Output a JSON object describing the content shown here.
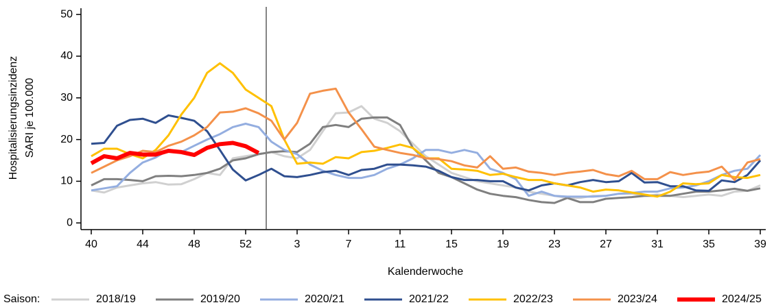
{
  "chart_data": {
    "type": "line",
    "ylabel": [
      "Hospitalisierungsinzidenz",
      "SARI je 100.000"
    ],
    "xlabel": "Kalenderwoche",
    "legend_title": "Saison:",
    "categories": [
      "40",
      null,
      null,
      null,
      "44",
      null,
      null,
      null,
      "48",
      null,
      null,
      null,
      "52",
      null,
      null,
      null,
      "3",
      null,
      null,
      null,
      "7",
      null,
      null,
      null,
      "11",
      null,
      null,
      null,
      "15",
      null,
      null,
      null,
      "19",
      null,
      null,
      null,
      "23",
      null,
      null,
      null,
      "27",
      null,
      null,
      null,
      "31",
      null,
      null,
      null,
      "35",
      null,
      null,
      null,
      "39"
    ],
    "ylim": [
      -1.6,
      51.5
    ],
    "yticks": [
      0,
      10,
      20,
      30,
      40,
      50
    ],
    "grid": false,
    "series": [
      {
        "name": "2018/19",
        "color": "#d0d0d0",
        "width": 3,
        "values": [
          7.8,
          7.3,
          8.5,
          9,
          9.5,
          9.8,
          9.2,
          9.3,
          10.5,
          12,
          11.5,
          15.5,
          16,
          16.5,
          17,
          16,
          15.5,
          17.5,
          22,
          26.3,
          26.5,
          28,
          25,
          24,
          22,
          19,
          16,
          14,
          12,
          11,
          10,
          9.5,
          9,
          8.5,
          7.5,
          7,
          6.5,
          6,
          6,
          6.5,
          6.5,
          7,
          7,
          6.5,
          6.8,
          6.5,
          6.2,
          6.5,
          6.8,
          6.5,
          7.5,
          7.7,
          9
        ]
      },
      {
        "name": "2019/20",
        "color": "#7f7f7f",
        "width": 3,
        "values": [
          9,
          10.5,
          10.5,
          10.3,
          10,
          11.2,
          11.3,
          11.2,
          11.5,
          12,
          13,
          15,
          15.5,
          16.5,
          17,
          17.2,
          17,
          19,
          23,
          23.5,
          23,
          25,
          25.3,
          25.3,
          23.5,
          18,
          15,
          12,
          11,
          9.5,
          8,
          7,
          6.5,
          6.2,
          5.5,
          5,
          4.8,
          6,
          5,
          5,
          5.8,
          6,
          6.2,
          6.5,
          6.5,
          6.5,
          7,
          7.5,
          7.5,
          7.8,
          8.2,
          7.7,
          8.3
        ]
      },
      {
        "name": "2020/21",
        "color": "#94aee0",
        "width": 3,
        "values": [
          7.8,
          8.3,
          8.8,
          12,
          14.5,
          15.7,
          17.5,
          17,
          18.5,
          20,
          21.3,
          23,
          23.8,
          23,
          19.5,
          17.5,
          16.5,
          14,
          12.5,
          11.5,
          10.8,
          10.8,
          11.5,
          13,
          14,
          15.5,
          17.5,
          17.5,
          16.8,
          17.5,
          16.8,
          13,
          12,
          10.5,
          6.5,
          7.5,
          6.5,
          6.3,
          6.3,
          6.3,
          6.5,
          7,
          7.2,
          7.5,
          7.5,
          8.3,
          8.5,
          9,
          10,
          11.5,
          12.5,
          13,
          16.3
        ]
      },
      {
        "name": "2021/22",
        "color": "#2f4f8f",
        "width": 3,
        "values": [
          19,
          19.2,
          23.3,
          24.7,
          25,
          24,
          25.8,
          25.2,
          24.5,
          22,
          17.5,
          12.8,
          10.2,
          11.5,
          13,
          11.2,
          11,
          11.5,
          12.2,
          12.5,
          11.5,
          12.7,
          13,
          14,
          14,
          13.8,
          13.5,
          12.5,
          11,
          10.3,
          10.3,
          10,
          10,
          8.5,
          7.8,
          9,
          9.5,
          9,
          9.8,
          10.3,
          9.8,
          10,
          12,
          9.7,
          9.8,
          8.8,
          8.8,
          7.8,
          7.7,
          10.2,
          9.8,
          11.5,
          15
        ]
      },
      {
        "name": "2022/23",
        "color": "#ffc000",
        "width": 3,
        "values": [
          16,
          17.8,
          17.8,
          16.5,
          15.5,
          17.5,
          21,
          26,
          30,
          36,
          38.3,
          36,
          32,
          30,
          28,
          20,
          14.2,
          14.5,
          14.2,
          15.8,
          15.5,
          17,
          17.3,
          18,
          18.8,
          18,
          15.5,
          15.5,
          13,
          12.8,
          12.5,
          11.5,
          11.8,
          11,
          10.3,
          10.3,
          9.5,
          9,
          8.5,
          7.5,
          8,
          7.8,
          7.3,
          6.8,
          6.3,
          7.5,
          9.5,
          9.3,
          9.5,
          11.5,
          11,
          10.8,
          11.5
        ]
      },
      {
        "name": "2023/24",
        "color": "#f4914a",
        "width": 3,
        "values": [
          12,
          13.5,
          15,
          16,
          17.3,
          17,
          18.5,
          19.5,
          21,
          23,
          26.5,
          26.7,
          27.5,
          26.3,
          24.5,
          20,
          24,
          31,
          31.7,
          32.2,
          26.5,
          22.5,
          18.3,
          17.5,
          16.8,
          16.3,
          15.5,
          15.3,
          14.8,
          13.8,
          13.3,
          16,
          13,
          13.3,
          12.3,
          12,
          11.5,
          12,
          12.3,
          12.7,
          11.7,
          11.2,
          12.5,
          10.5,
          10.5,
          12.2,
          11.5,
          12,
          12.3,
          13.5,
          10.3,
          14.5,
          15.3
        ]
      },
      {
        "name": "2024/25",
        "color": "#ff0000",
        "width": 6,
        "values": [
          14.3,
          16,
          15.5,
          16.8,
          16.4,
          16.4,
          17.3,
          17,
          16.3,
          18,
          18.9,
          19.2,
          18.4,
          16.8,
          null,
          null,
          null,
          null,
          null,
          null,
          null,
          null,
          null,
          null,
          null,
          null,
          null,
          null,
          null,
          null,
          null,
          null,
          null,
          null,
          null,
          null,
          null,
          null,
          null,
          null,
          null,
          null,
          null,
          null,
          null,
          null,
          null,
          null,
          null,
          null,
          null,
          null,
          null
        ]
      }
    ]
  }
}
